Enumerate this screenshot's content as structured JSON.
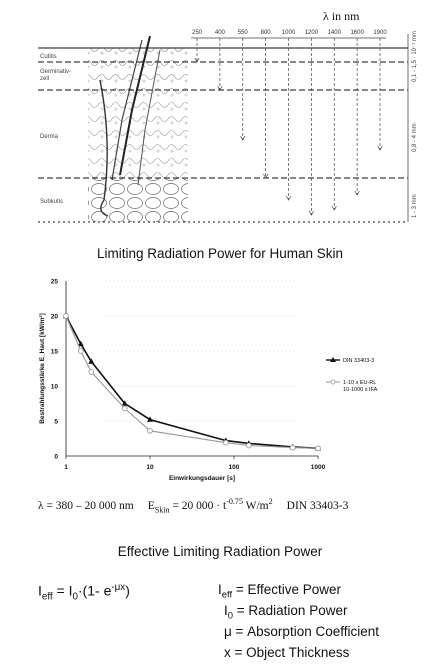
{
  "diagram": {
    "lambda_header": "λ in nm",
    "wavelength_ticks": [
      "250",
      "400",
      "550",
      "800",
      "1000",
      "1200",
      "1400",
      "1600",
      "1900"
    ],
    "layers": [
      "Cutitis",
      "Germinativ-",
      "Derma",
      "Subkutis"
    ],
    "layer_sub": "zell",
    "depth_labels": [
      "0,1 - 1,5 · 10⁻¹ mm",
      "0,8 - 4 mm",
      "1 - 3 mm"
    ]
  },
  "title_top": "Limiting Radiation  Power for Human Skin",
  "chart_data": {
    "type": "line",
    "xscale": "log",
    "xlim": [
      1,
      1000
    ],
    "ylim": [
      0,
      25
    ],
    "xticks": [
      "1",
      "10",
      "100",
      "1000"
    ],
    "yticks": [
      "0",
      "5",
      "10",
      "15",
      "20",
      "25"
    ],
    "xlabel": "Einwirkungsdauer [s]",
    "ylabel": "Bestrahlungsstärke E_Haut [kW/m²]",
    "grid": "dotted horizontal",
    "legend_position": "right",
    "series": [
      {
        "name": "DIN 33403-3",
        "color": "#111111",
        "marker": "triangle",
        "x": [
          1,
          1.5,
          2,
          5,
          10,
          80,
          150,
          500,
          1000
        ],
        "y": [
          20,
          16,
          13.5,
          7.5,
          5.2,
          2.2,
          1.8,
          1.3,
          1.1
        ]
      },
      {
        "name_lines": [
          "1-10 s EU-RL",
          "10-1000 s IFA"
        ],
        "color": "#999999",
        "marker": "circle",
        "x": [
          1,
          1.5,
          2,
          5,
          10,
          80,
          150,
          500,
          1000
        ],
        "y": [
          20,
          15,
          12,
          6.8,
          3.6,
          1.9,
          1.5,
          1.2,
          1.1
        ]
      }
    ]
  },
  "formula_line": {
    "lambda_range": "λ = 380 – 20 000 nm",
    "e_skin_prefix": "E",
    "e_skin_sub": "Skin",
    "e_skin_mid": " = 20 000 · t",
    "e_skin_sup": "-0.75",
    "e_skin_unit": " W/m",
    "e_skin_unit_sup": "2",
    "standard": "DIN 33403-3"
  },
  "title_bottom": "Effective Limiting Radiation Power",
  "effective": {
    "formula_prefix": "I",
    "formula_sub": "eff",
    "formula_mid": " = I",
    "formula_sub2": "0",
    "formula_rest": "·(1- e",
    "formula_sup": "-μx",
    "formula_end": ")",
    "definitions": [
      {
        "sym": "I",
        "sub": "eff",
        "text": " = Effective Power"
      },
      {
        "sym": "I",
        "sub": "0",
        "text": " = Radiation Power"
      },
      {
        "sym": "μ",
        "sub": "",
        "text": " = Absorption Coefficient"
      },
      {
        "sym": "x",
        "sub": "",
        "text": " = Object Thickness"
      }
    ]
  }
}
